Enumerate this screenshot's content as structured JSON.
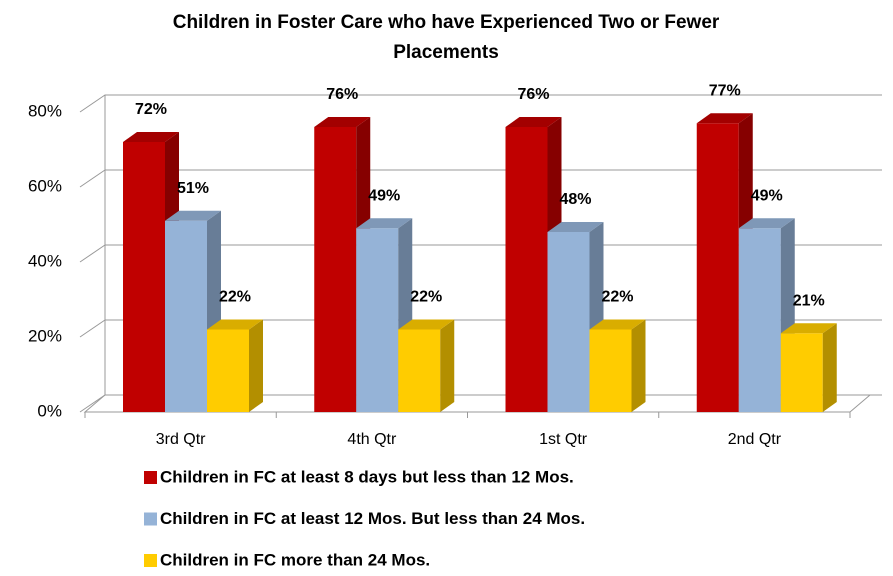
{
  "chart_data": {
    "type": "bar3d",
    "title": "Children in Foster Care who have Experienced Two or Fewer Placements",
    "categories": [
      "3rd Qtr",
      "4th Qtr",
      "1st Qtr",
      "2nd Qtr"
    ],
    "series": [
      {
        "name": "Children in FC at least 8 days but less than 12 Mos.",
        "color": "#c00000",
        "values": [
          72,
          76,
          76,
          77
        ],
        "value_labels": [
          "72%",
          "76%",
          "76%",
          "77%"
        ]
      },
      {
        "name": "Children in FC at least 12 Mos. But less than 24 Mos.",
        "color": "#95b3d7",
        "values": [
          51,
          49,
          48,
          49
        ],
        "value_labels": [
          "51%",
          "49%",
          "48%",
          "49%"
        ]
      },
      {
        "name": "Children in FC more than 24 Mos.",
        "color": "#ffcc00",
        "values": [
          22,
          22,
          22,
          21
        ],
        "value_labels": [
          "22%",
          "22%",
          "22%",
          "21%"
        ]
      }
    ],
    "ylim": [
      0,
      80
    ],
    "yticks": [
      {
        "value": 0,
        "label": "0%"
      },
      {
        "value": 20,
        "label": "20%"
      },
      {
        "value": 40,
        "label": "40%"
      },
      {
        "value": 60,
        "label": "60%"
      },
      {
        "value": 80,
        "label": "80%"
      }
    ],
    "grid": true,
    "legend": "bottom"
  }
}
